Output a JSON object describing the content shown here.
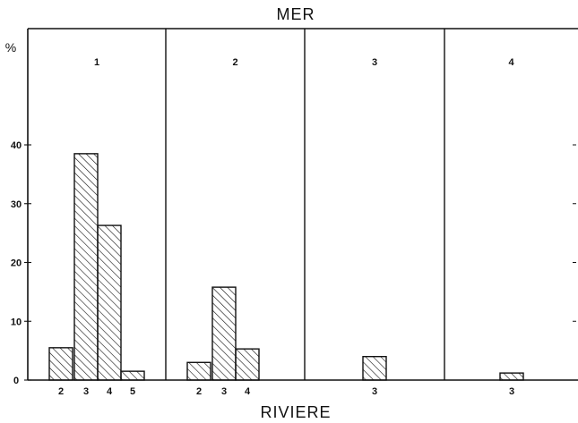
{
  "chart_data": {
    "type": "bar",
    "title": "MER",
    "xlabel": "RIVIERE",
    "ylabel": "%",
    "ylim": [
      0,
      40
    ],
    "yticks": [
      0,
      10,
      20,
      30,
      40
    ],
    "grid": false,
    "colors": {
      "stroke": "#111111",
      "hatch": "#111111",
      "background": "#ffffff"
    },
    "panels": [
      {
        "label": "1",
        "categories": [
          "2",
          "3",
          "4",
          "5"
        ],
        "values": [
          5.5,
          38.5,
          26.3,
          1.5
        ]
      },
      {
        "label": "2",
        "categories": [
          "2",
          "3",
          "4"
        ],
        "values": [
          3,
          15.8,
          5.3
        ]
      },
      {
        "label": "3",
        "categories": [
          "3"
        ],
        "values": [
          4
        ]
      },
      {
        "label": "4",
        "categories": [
          "3"
        ],
        "values": [
          1.2
        ]
      }
    ]
  }
}
